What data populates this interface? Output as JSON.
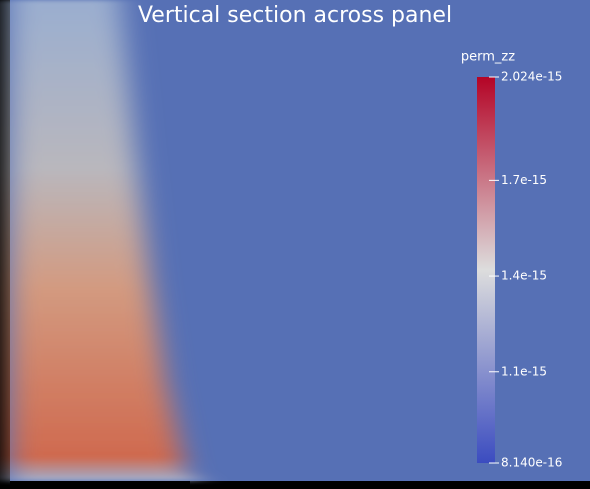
{
  "chart_data": {
    "type": "colormap-section",
    "title": "Vertical section across panel",
    "colorbar_label": "perm_zz",
    "colormap": [
      "#3b4cc0",
      "#dddddd",
      "#b40426"
    ],
    "clim": [
      8.14e-16,
      2.024e-15
    ],
    "colorbar_ticks": [
      2.024e-15,
      1.7e-15,
      1.4e-15,
      1.1e-15,
      {
        "value": 8.14e-16,
        "label": "8.140e-16"
      }
    ]
  }
}
